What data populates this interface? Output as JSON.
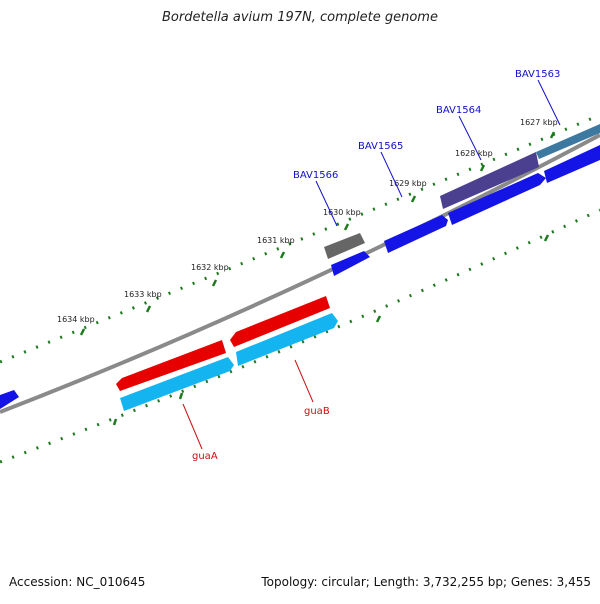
{
  "title": "Bordetella avium 197N, complete genome",
  "footer": {
    "accession": "Accession: NC_010645",
    "summary": "Topology: circular; Length: 3,732,255 bp; Genes: 3,455"
  },
  "ticks": [
    "1627 kbp",
    "1628 kbp",
    "1629 kbp",
    "1630 kbp",
    "1631 kbp",
    "1632 kbp",
    "1633 kbp",
    "1634 kbp"
  ],
  "gene_labels": [
    {
      "text": "BAV1563",
      "color": "#1010c8"
    },
    {
      "text": "BAV1564",
      "color": "#1010c8"
    },
    {
      "text": "BAV1565",
      "color": "#1010c8"
    },
    {
      "text": "BAV1566",
      "color": "#1010c8"
    },
    {
      "text": "guaB",
      "color": "#c81010"
    },
    {
      "text": "guaA",
      "color": "#c81010"
    }
  ],
  "colors": {
    "backbone": "#8a8a8a",
    "tick_marks": "#1f7a1f",
    "gene_blue": "#1414e6",
    "gene_red": "#e60000",
    "gene_cyan": "#14b4f0",
    "gene_gray": "#666666",
    "gene_slate": "#4b3f8f",
    "gene_teal": "#3c78a0"
  }
}
